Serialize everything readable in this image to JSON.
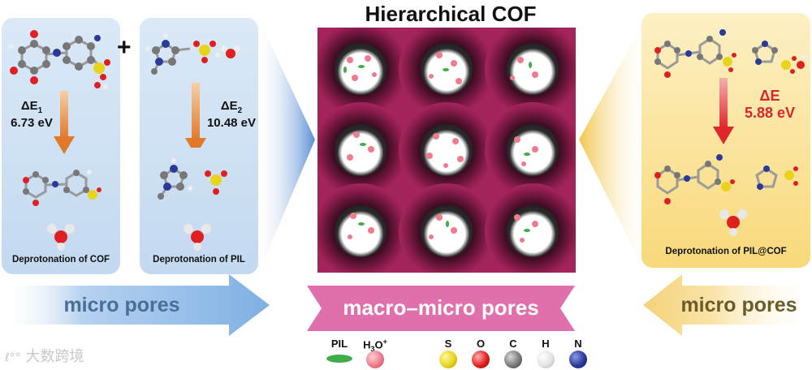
{
  "title": "Hierarchical COF",
  "left_panel_1": {
    "energy_symbol": "ΔE",
    "energy_subscript": "1",
    "energy_value": "6.73 eV",
    "caption": "Deprotonation of COF"
  },
  "plus_sign": "+",
  "left_panel_2": {
    "energy_symbol": "ΔE",
    "energy_subscript": "2",
    "energy_value": "10.48 eV",
    "caption": "Deprotonation of PIL"
  },
  "right_panel": {
    "energy_symbol": "ΔE",
    "energy_value": "5.88 eV",
    "caption": "Deprotonation of PIL@COF"
  },
  "arrows": {
    "left": "micro pores",
    "center": "macro–micro pores",
    "right": "micro pores"
  },
  "legend": [
    {
      "label": "PIL",
      "color": "#3fae4a",
      "shape": "ellipse"
    },
    {
      "label": "H3O+",
      "color": "#f07a8e",
      "shape": "ball"
    },
    {
      "label": "S",
      "color": "#e8d41c",
      "shape": "ball"
    },
    {
      "label": "O",
      "color": "#e02020",
      "shape": "ball"
    },
    {
      "label": "C",
      "color": "#7a7a7a",
      "shape": "ball"
    },
    {
      "label": "H",
      "color": "#e4e4e4",
      "shape": "ball"
    },
    {
      "label": "N",
      "color": "#2a3a9a",
      "shape": "ball"
    }
  ],
  "colors": {
    "cof_background": "#a3245a",
    "blue_arrow": "#8db8e6",
    "pink_arrow": "#e070ac",
    "yellow_arrow": "#f7dd96",
    "orange_arrow": "#e88a3c",
    "red_arrow": "#e0262c",
    "delta_e_red": "#d9262c"
  },
  "watermark": "大数跨境"
}
